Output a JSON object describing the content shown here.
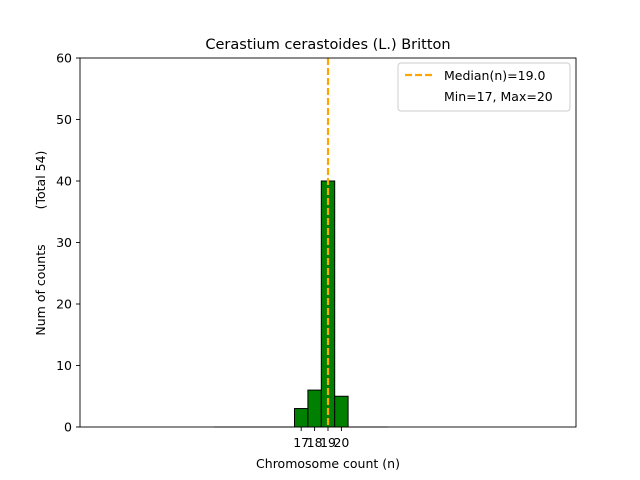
{
  "chart_data": {
    "type": "bar",
    "title": "Cerastium cerastoides (L.) Britton",
    "xlabel": "Chromosome count (n)",
    "ylabel": "Num of counts",
    "ylabel_total": "(Total 54)",
    "ylim": [
      0,
      60
    ],
    "yticks": [
      0,
      10,
      20,
      30,
      40,
      50,
      60
    ],
    "categories": [
      "17",
      "18",
      "19",
      "20"
    ],
    "values": [
      3,
      6,
      40,
      5
    ],
    "bar_color": "#008000",
    "bar_edge_color": "#000000",
    "grid": false,
    "median": {
      "value": 19.0,
      "label": "Median(n)=19.0",
      "color": "#FFA500"
    },
    "legend": {
      "position": "top-right",
      "entries": [
        "Median(n)=19.0",
        "Min=17, Max=20"
      ]
    }
  }
}
